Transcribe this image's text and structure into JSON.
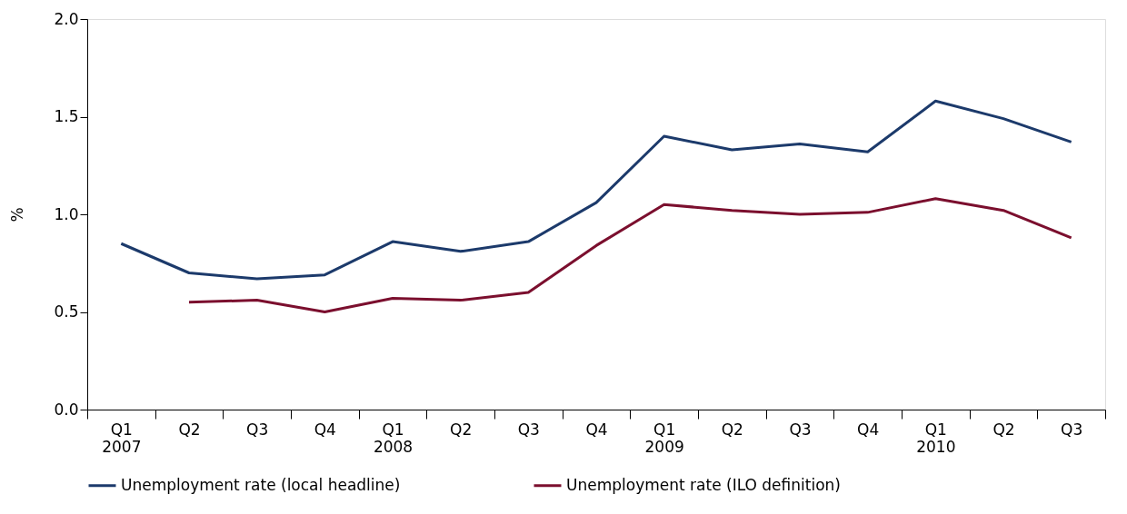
{
  "chart_data": {
    "type": "line",
    "ylabel": "%",
    "categories": [
      "Q1\n2007",
      "Q2",
      "Q3",
      "Q4",
      "Q1\n2008",
      "Q2",
      "Q3",
      "Q4",
      "Q1\n2009",
      "Q2",
      "Q3",
      "Q4",
      "Q1\n2010",
      "Q2",
      "Q3"
    ],
    "series": [
      {
        "name": "Unemployment rate (local headline)",
        "color": "#1c3a6b",
        "values": [
          0.85,
          0.7,
          0.67,
          0.69,
          0.86,
          0.81,
          0.86,
          1.06,
          1.4,
          1.33,
          1.36,
          1.32,
          1.58,
          1.49,
          1.37
        ]
      },
      {
        "name": "Unemployment rate (ILO definition)",
        "color": "#7b0f2e",
        "values": [
          null,
          0.55,
          0.56,
          0.5,
          0.57,
          0.56,
          0.6,
          0.84,
          1.05,
          1.02,
          1.0,
          1.01,
          1.08,
          1.02,
          0.88
        ]
      }
    ],
    "ylim": [
      0,
      2
    ],
    "yticks": [
      {
        "value": 0,
        "label": "0.0"
      },
      0.5,
      {
        "value": 1,
        "label": "1.0"
      },
      1.5,
      {
        "value": 2,
        "label": "2.0"
      }
    ],
    "legend": "bottom",
    "grid": false
  }
}
